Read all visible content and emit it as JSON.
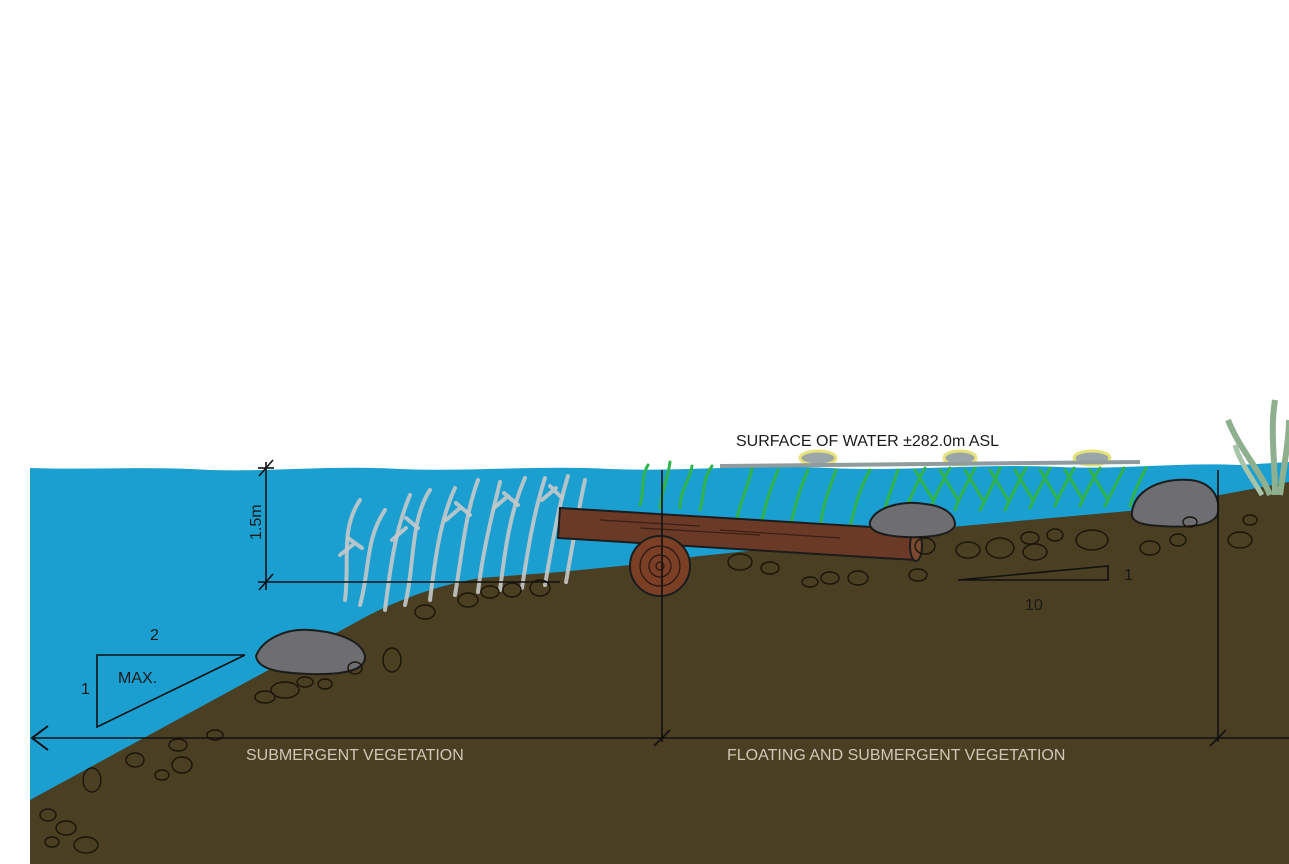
{
  "diagram": {
    "surface_label": "SURFACE OF WATER ±282.0m ASL",
    "depth_label": "1.5m",
    "slope_steep": {
      "run": "2",
      "rise": "1",
      "note": "MAX."
    },
    "slope_gentle": {
      "run": "10",
      "rise": "1"
    },
    "zones": [
      {
        "label": "SUBMERGENT VEGETATION"
      },
      {
        "label": "FLOATING AND SUBMERGENT VEGETATION"
      }
    ],
    "colors": {
      "water": "#1a9fd0",
      "soil": "#4a3f22",
      "log": "#6b3a26",
      "rock": "#6e6e72",
      "emergent_plants": "#2fb34a",
      "submergent_plants": "#c4c9c9"
    },
    "icons": [
      "rock-icon",
      "log-icon",
      "pebble-icon",
      "plant-icon"
    ]
  }
}
